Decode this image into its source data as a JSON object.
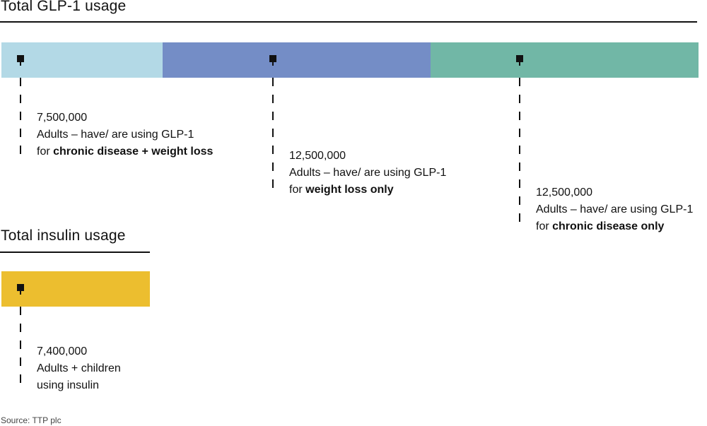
{
  "chart_data": [
    {
      "type": "bar",
      "title": "Total GLP-1 usage",
      "orientation": "horizontal-stacked",
      "series": [
        {
          "value": 7500000,
          "value_label": "7,500,000",
          "line": "Adults – have/ are using GLP-1",
          "prefix": "for ",
          "emphasis": "chronic disease + weight loss",
          "color": "#b3d9e6"
        },
        {
          "value": 12500000,
          "value_label": "12,500,000",
          "line": "Adults – have/ are using GLP-1",
          "prefix": "for ",
          "emphasis": "weight loss only",
          "color": "#748dc6"
        },
        {
          "value": 12500000,
          "value_label": "12,500,000",
          "line": "Adults – have/ are using GLP-1",
          "prefix": "for ",
          "emphasis": "chronic disease only",
          "color": "#71b7a6"
        }
      ]
    },
    {
      "type": "bar",
      "title": "Total insulin usage",
      "orientation": "horizontal-stacked",
      "series": [
        {
          "value": 7400000,
          "value_label": "7,400,000",
          "line": "Adults + children",
          "line2": "using insulin",
          "color": "#ecbe2f"
        }
      ]
    }
  ],
  "source": "Source: TTP plc"
}
